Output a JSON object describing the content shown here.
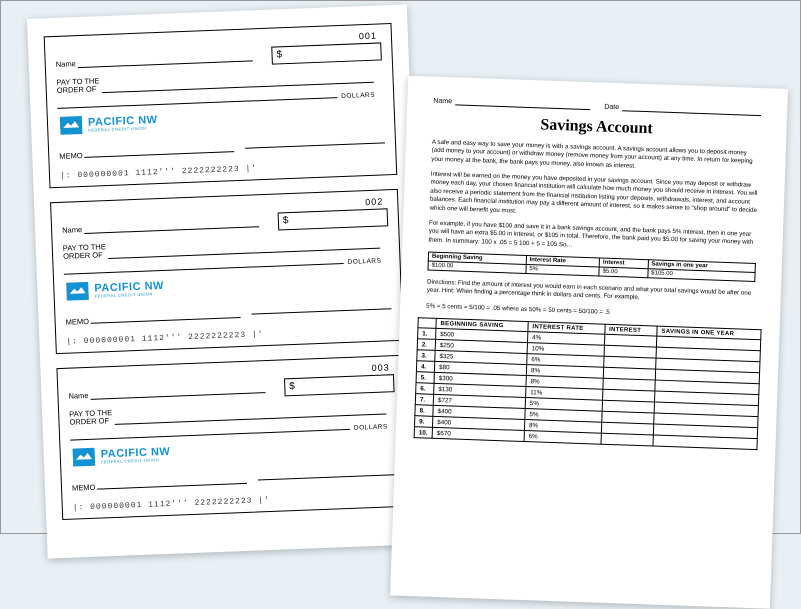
{
  "checks": {
    "labels": {
      "name": "Name",
      "payto_line1": "PAY TO THE",
      "payto_line2": "ORDER OF",
      "dollars": "DOLLARS",
      "memo": "MEMO"
    },
    "logo": {
      "name": "PACIFIC NW",
      "sub": "FEDERAL CREDIT UNION",
      "color": "#1392d4"
    },
    "items": [
      {
        "num": "001",
        "micr": "|: 000000001     1112'''    2222222223 |'"
      },
      {
        "num": "002",
        "micr": "|: 000000001     1112'''    2222222223 |'"
      },
      {
        "num": "003",
        "micr": "|: 000000001     1112'''    2222222223 |'"
      }
    ]
  },
  "savings": {
    "header": {
      "name_label": "Name",
      "date_label": "Date"
    },
    "title": "Savings Account",
    "p1": "A safe and easy way to save your money is with a savings account. A savings account allows you to deposit money (add money to your account) or withdraw money (remove money from your account) at any time. In return for keeping your money at the bank, the bank pays you money, also known as interest.",
    "p2": "Interest will be earned on the money you have deposited in your savings account. Since you may deposit or withdraw money each day, your chosen financial institution will calculate how much money you should receive in interest. You will also receive a periodic statement from the financial institution listing your deposits, withdrawals, interest, and account balances. Each financial institution may pay a different amount of interest, so it makes sense to \"shop around\" to decide which one will benefit you most.",
    "p3": "For example, if you have $100 and save it in a bank savings account, and the bank pays 5% interest, then in one year you will have an extra $5.00 in interest, or $105 in total. Therefore, the bank paid you $5.00 for saving your money with them. In summary: 100 x .05 = 5     100 + 5 = 105 So…",
    "example_table": {
      "headers": [
        "Beginning Saving",
        "Interest Rate",
        "Interest",
        "Savings in one year"
      ],
      "row": [
        "$100.00",
        "5%",
        "$5.00",
        "$105.00"
      ]
    },
    "directions": "Directions: Find the amount of interest you would earn in each scenario and what your total savings would be after one year. Hint: When finding a percentage think in dollars and cents. For example,",
    "hint": "5% = 5 cents = 5/100 = .05 where as 50% = 50 cents = 50/100 = .5",
    "table": {
      "headers": [
        "",
        "BEGINNING SAVING",
        "INTEREST RATE",
        "INTEREST",
        "SAVINGS IN ONE YEAR"
      ],
      "rows": [
        {
          "n": "1.",
          "bs": "$500",
          "ir": "4%"
        },
        {
          "n": "2.",
          "bs": "$250",
          "ir": "10%"
        },
        {
          "n": "3.",
          "bs": "$325",
          "ir": "6%"
        },
        {
          "n": "4.",
          "bs": "$80",
          "ir": "8%"
        },
        {
          "n": "5.",
          "bs": "$300",
          "ir": "8%"
        },
        {
          "n": "6.",
          "bs": "$130",
          "ir": "11%"
        },
        {
          "n": "7.",
          "bs": "$727",
          "ir": "5%"
        },
        {
          "n": "8.",
          "bs": "$400",
          "ir": "5%"
        },
        {
          "n": "9.",
          "bs": "$400",
          "ir": "8%"
        },
        {
          "n": "10.",
          "bs": "$670",
          "ir": "6%"
        }
      ]
    }
  }
}
